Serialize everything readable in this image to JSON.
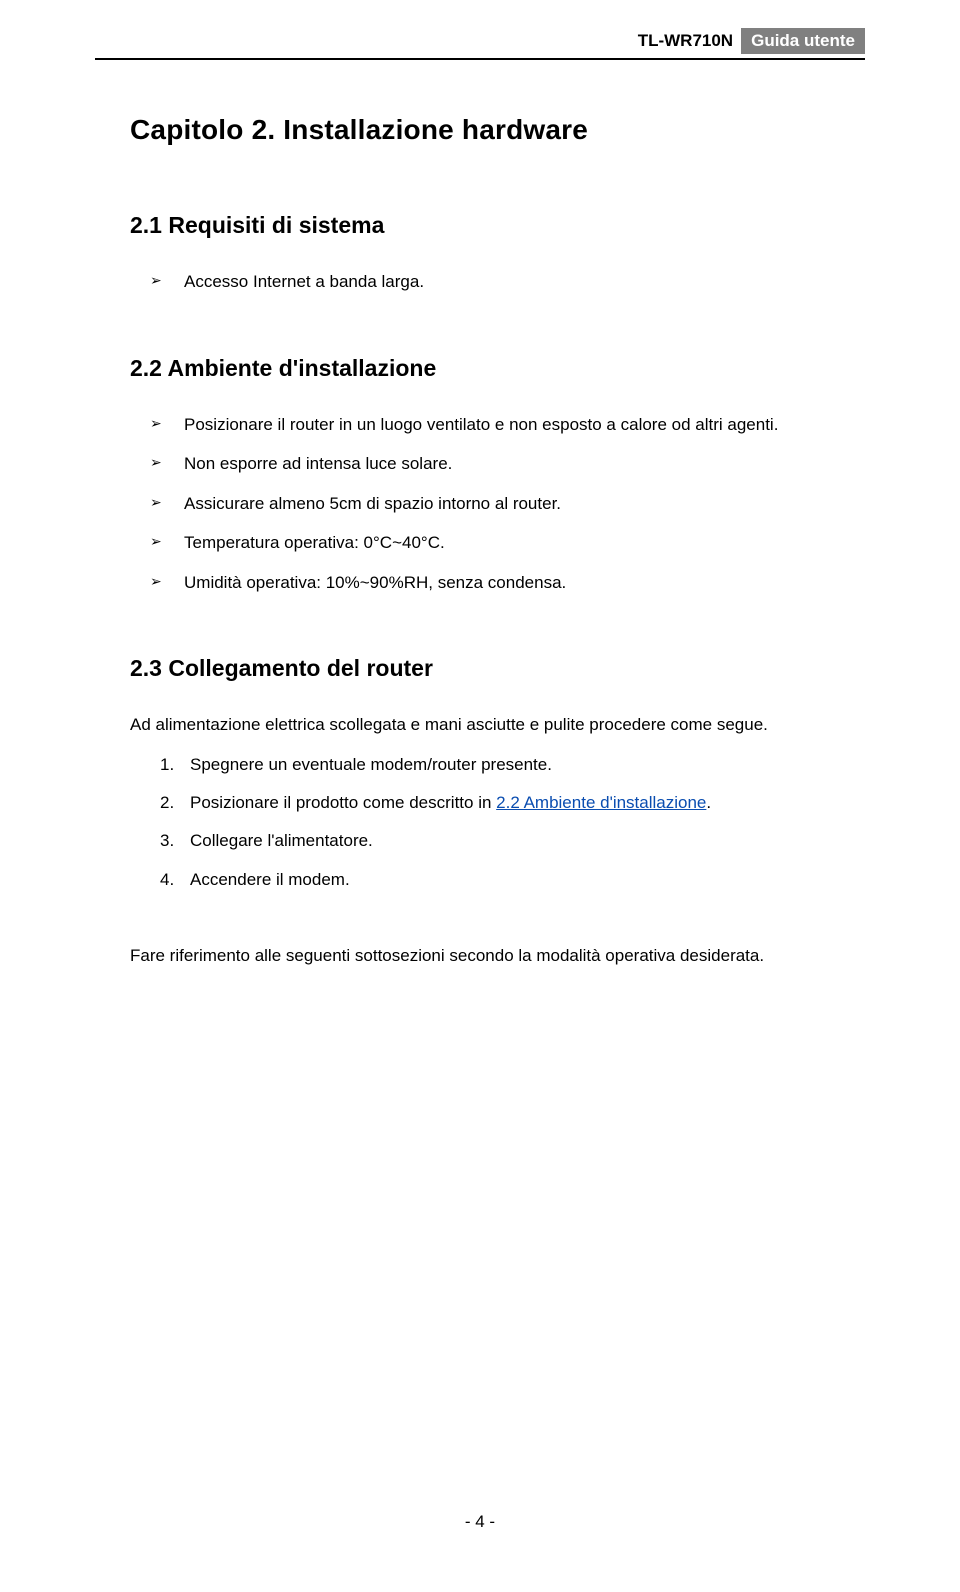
{
  "header": {
    "model": "TL-WR710N",
    "guide_label": "Guida utente"
  },
  "chapter_title": "Capitolo 2.  Installazione hardware",
  "section1": {
    "heading": "2.1  Requisiti di sistema",
    "items": [
      "Accesso Internet a banda larga."
    ]
  },
  "section2": {
    "heading": "2.2  Ambiente d'installazione",
    "items": [
      "Posizionare il router in un luogo ventilato e non esposto a calore od altri agenti.",
      "Non esporre ad intensa luce solare.",
      "Assicurare almeno 5cm di spazio intorno al router.",
      "Temperatura operativa: 0°C~40°C.",
      "Umidità operativa: 10%~90%RH, senza condensa."
    ]
  },
  "section3": {
    "heading": "2.3  Collegamento del router",
    "intro": "Ad alimentazione elettrica scollegata e mani asciutte e pulite procedere come segue.",
    "steps": [
      {
        "num": "1.",
        "text_before": "Spegnere un eventuale modem/router presente.",
        "link": "",
        "text_after": ""
      },
      {
        "num": "2.",
        "text_before": "Posizionare il prodotto come descritto in ",
        "link": "2.2 Ambiente d'installazione",
        "text_after": "."
      },
      {
        "num": "3.",
        "text_before": "Collegare l'alimentatore.",
        "link": "",
        "text_after": ""
      },
      {
        "num": "4.",
        "text_before": "Accendere il modem.",
        "link": "",
        "text_after": ""
      }
    ],
    "outro": "Fare riferimento alle seguenti sottosezioni secondo la modalità operativa desiderata."
  },
  "footer": {
    "page_number": "- 4 -"
  }
}
